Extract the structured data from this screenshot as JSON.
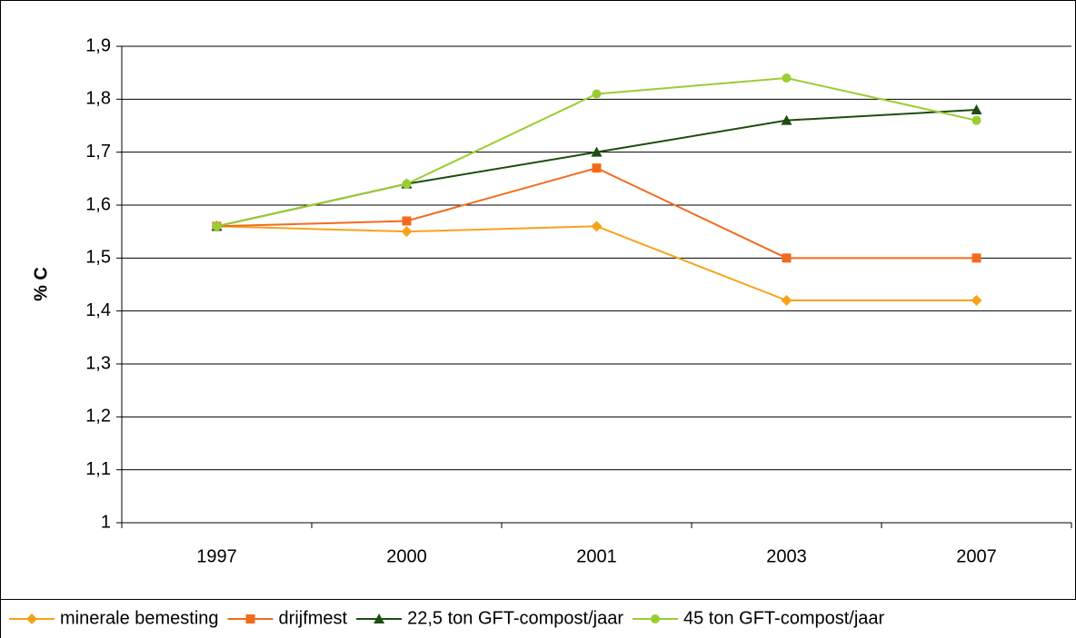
{
  "chart_data": {
    "type": "line",
    "ylabel": "% C",
    "categories": [
      "1997",
      "2000",
      "2001",
      "2003",
      "2007"
    ],
    "series": [
      {
        "name": "minerale bemesting",
        "color": "#f7a21b",
        "marker": "diamond",
        "values": [
          1.56,
          1.55,
          1.56,
          1.42,
          1.42
        ]
      },
      {
        "name": "drijfmest",
        "color": "#f26b1d",
        "marker": "square",
        "values": [
          1.56,
          1.57,
          1.67,
          1.5,
          1.5
        ]
      },
      {
        "name": "22,5 ton GFT-compost/jaar",
        "color": "#1d4d0f",
        "marker": "triangle",
        "values": [
          1.56,
          1.64,
          1.7,
          1.76,
          1.78
        ]
      },
      {
        "name": "45 ton GFT-compost/jaar",
        "color": "#9acd32",
        "marker": "circle",
        "values": [
          1.56,
          1.64,
          1.81,
          1.84,
          1.76
        ]
      }
    ],
    "ylim": [
      1,
      1.9
    ],
    "yticks": [
      1,
      {
        "value": 1.1,
        "label": "1,1"
      },
      {
        "value": 1.2,
        "label": "1,2"
      },
      {
        "value": 1.3,
        "label": "1,3"
      },
      {
        "value": 1.4,
        "label": "1,4"
      },
      {
        "value": 1.5,
        "label": "1,5"
      },
      {
        "value": 1.6,
        "label": "1,6"
      },
      {
        "value": 1.7,
        "label": "1,7"
      },
      {
        "value": 1.8,
        "label": "1,8"
      },
      {
        "value": 1.9,
        "label": "1,9"
      }
    ],
    "grid": true,
    "legend": "bottom"
  }
}
